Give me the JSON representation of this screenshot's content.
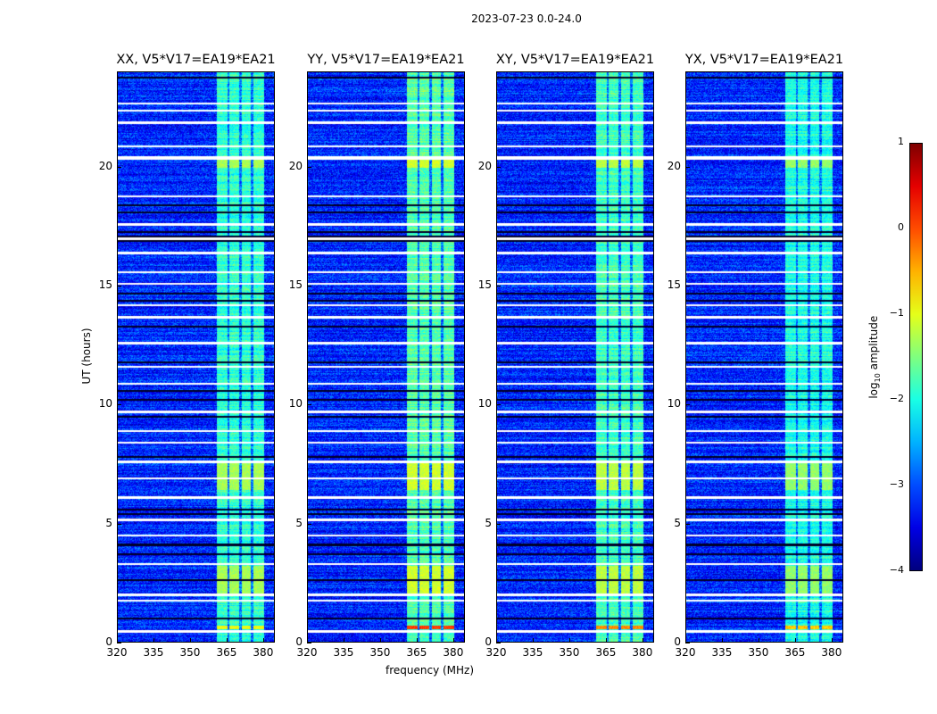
{
  "chart_data": {
    "type": "heatmap",
    "title": "2023-07-23 0.0-24.0",
    "xlabel": "frequency (MHz)",
    "ylabel": "UT (hours)",
    "xlim": [
      320,
      384.8
    ],
    "ylim": [
      0,
      24
    ],
    "xticks": [
      "320",
      "335",
      "350",
      "365",
      "380"
    ],
    "xtick_values": [
      320,
      335,
      350,
      365,
      380
    ],
    "yticks": [
      "0",
      "5",
      "10",
      "15",
      "20"
    ],
    "ytick_values": [
      0,
      5,
      10,
      15,
      20
    ],
    "panels": [
      {
        "title": "XX, V5*V17=EA19*EA21",
        "band_level": -1.9,
        "flare_level": -0.9
      },
      {
        "title": "YY, V5*V17=EA19*EA21",
        "band_level": -1.7,
        "flare_level": 0.1
      },
      {
        "title": "XY, V5*V17=EA19*EA21",
        "band_level": -1.8,
        "flare_level": -0.3
      },
      {
        "title": "YX, V5*V17=EA19*EA21",
        "band_level": -2.0,
        "flare_level": -0.6
      }
    ],
    "background_level": -3.2,
    "rfi_subbands_mhz": [
      [
        361,
        365.4
      ],
      [
        366.2,
        370.2
      ],
      [
        371.3,
        375
      ],
      [
        376,
        380.4
      ]
    ],
    "bright_intervals_ut": [
      [
        0.55,
        0.7
      ],
      [
        2.0,
        3.2
      ],
      [
        6.4,
        7.6
      ],
      [
        20.0,
        20.5
      ]
    ],
    "flagged_ut": [
      0.45,
      1.75,
      2.0,
      3.3,
      4.5,
      5.15,
      6.1,
      6.9,
      7.6,
      8.4,
      8.9,
      9.7,
      10.9,
      11.6,
      12.6,
      13.7,
      14.2,
      15.1,
      15.6,
      16.4,
      17.0,
      17.6,
      18.8,
      20.4,
      20.9,
      21.9,
      22.4,
      22.7
    ],
    "dark_ut": [
      1.0,
      2.6,
      3.7,
      4.1,
      5.4,
      5.6,
      7.8,
      9.5,
      10.2,
      10.6,
      11.8,
      13.3,
      14.4,
      14.7,
      16.9,
      17.1,
      17.3,
      18.1,
      18.4,
      23.8
    ],
    "colorbar": {
      "label": "log10 amplitude",
      "label_main": "log",
      "label_sub": "10",
      "label_rest": " amplitude",
      "range": [
        -4,
        1
      ],
      "ticks": [
        "−4",
        "−3",
        "−2",
        "−1",
        "0",
        "1"
      ],
      "tick_values": [
        -4,
        -3,
        -2,
        -1,
        0,
        1
      ],
      "colormap": "jet"
    }
  }
}
